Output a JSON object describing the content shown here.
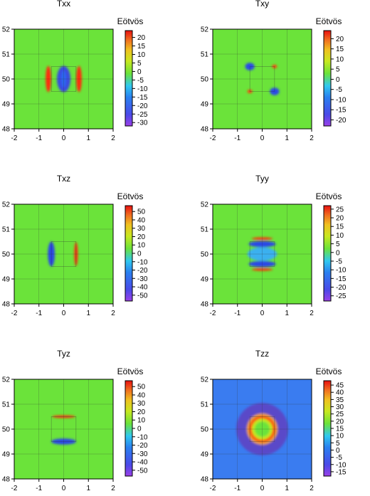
{
  "chart_data": [
    {
      "type": "heatmap",
      "title": "Txx",
      "colorbar_title": "Eötvös",
      "background_color": "#6be33a",
      "xticks": [
        -2,
        -1,
        0,
        1,
        2
      ],
      "yticks": [
        48,
        49,
        50,
        51,
        52
      ],
      "xlim": [
        -2,
        2
      ],
      "ylim": [
        48,
        52
      ],
      "colorbar_ticks": [
        20,
        15,
        10,
        5,
        0,
        -5,
        -10,
        -15,
        -20,
        -25,
        -30
      ],
      "colorbar_range": [
        -32,
        24
      ],
      "features": [
        {
          "x": 0,
          "y": 50,
          "w": 0.55,
          "h": 1.05,
          "color": "#3a49e0"
        },
        {
          "x": 0,
          "y": 50,
          "w": 0.2,
          "h": 0.7,
          "color": "#2c68f0"
        },
        {
          "x": -0.62,
          "y": 50,
          "w": 0.22,
          "h": 1.05,
          "color": "#ff2a0a"
        },
        {
          "x": 0.62,
          "y": 50,
          "w": 0.22,
          "h": 1.05,
          "color": "#ff2a0a"
        }
      ]
    },
    {
      "type": "heatmap",
      "title": "Txy",
      "colorbar_title": "Eötvös",
      "background_color": "#6be33a",
      "xticks": [
        -2,
        -1,
        0,
        1,
        2
      ],
      "yticks": [
        48,
        49,
        50,
        51,
        52
      ],
      "xlim": [
        -2,
        2
      ],
      "ylim": [
        48,
        52
      ],
      "colorbar_ticks": [
        20,
        15,
        10,
        5,
        0,
        -5,
        -10,
        -15,
        -20
      ],
      "colorbar_range": [
        -23,
        24
      ],
      "features": [
        {
          "x": -0.5,
          "y": 50.5,
          "w": 0.38,
          "h": 0.3,
          "color": "#2a4ae8"
        },
        {
          "x": 0.5,
          "y": 49.5,
          "w": 0.38,
          "h": 0.3,
          "color": "#2a4ae8"
        },
        {
          "x": 0.5,
          "y": 50.5,
          "w": 0.2,
          "h": 0.14,
          "color": "#ff3a0a"
        },
        {
          "x": -0.5,
          "y": 49.5,
          "w": 0.2,
          "h": 0.14,
          "color": "#ff3a0a"
        }
      ]
    },
    {
      "type": "heatmap",
      "title": "Txz",
      "colorbar_title": "Eötvös",
      "background_color": "#6be33a",
      "xticks": [
        -2,
        -1,
        0,
        1,
        2
      ],
      "yticks": [
        48,
        49,
        50,
        51,
        52
      ],
      "xlim": [
        -2,
        2
      ],
      "ylim": [
        48,
        52
      ],
      "colorbar_ticks": [
        50,
        40,
        30,
        20,
        10,
        0,
        -10,
        -20,
        -30,
        -40,
        -50
      ],
      "colorbar_range": [
        -57,
        57
      ],
      "features": [
        {
          "x": -0.5,
          "y": 50,
          "w": 0.28,
          "h": 1.0,
          "color": "#2a46e6"
        },
        {
          "x": 0.5,
          "y": 50,
          "w": 0.14,
          "h": 0.95,
          "color": "#ff2a0a"
        }
      ]
    },
    {
      "type": "heatmap",
      "title": "Tyy",
      "colorbar_title": "Eötvös",
      "background_color": "#6be33a",
      "xticks": [
        -2,
        -1,
        0,
        1,
        2
      ],
      "yticks": [
        48,
        49,
        50,
        51,
        52
      ],
      "xlim": [
        -2,
        2
      ],
      "ylim": [
        48,
        52
      ],
      "colorbar_ticks": [
        25,
        20,
        15,
        10,
        5,
        0,
        -5,
        -10,
        -15,
        -20,
        -25
      ],
      "colorbar_range": [
        -28,
        27
      ],
      "features": [
        {
          "x": 0,
          "y": 50,
          "w": 1.2,
          "h": 0.55,
          "color": "#3ab0f0"
        },
        {
          "x": 0,
          "y": 50.4,
          "w": 1.1,
          "h": 0.24,
          "color": "#2a46e6"
        },
        {
          "x": 0,
          "y": 49.6,
          "w": 1.1,
          "h": 0.24,
          "color": "#2a46e6"
        },
        {
          "x": 0,
          "y": 50.62,
          "w": 0.85,
          "h": 0.1,
          "color": "#ff2a0a"
        },
        {
          "x": 0,
          "y": 49.38,
          "w": 0.85,
          "h": 0.1,
          "color": "#ff2a0a"
        }
      ]
    },
    {
      "type": "heatmap",
      "title": "Tyz",
      "colorbar_title": "Eötvös",
      "background_color": "#6be33a",
      "xticks": [
        -2,
        -1,
        0,
        1,
        2
      ],
      "yticks": [
        48,
        49,
        50,
        51,
        52
      ],
      "xlim": [
        -2,
        2
      ],
      "ylim": [
        48,
        52
      ],
      "colorbar_ticks": [
        50,
        40,
        30,
        20,
        10,
        0,
        -10,
        -20,
        -30,
        -40,
        -50
      ],
      "colorbar_range": [
        -57,
        57
      ],
      "features": [
        {
          "x": 0,
          "y": 50.5,
          "w": 0.95,
          "h": 0.1,
          "color": "#ff2a0a"
        },
        {
          "x": 0,
          "y": 49.5,
          "w": 1.0,
          "h": 0.24,
          "color": "#2a46e6"
        }
      ]
    },
    {
      "type": "heatmap",
      "title": "Tzz",
      "colorbar_title": "Eötvös",
      "background_color": "#3a7cf0",
      "xticks": [
        -2,
        -1,
        0,
        1,
        2
      ],
      "yticks": [
        48,
        49,
        50,
        51,
        52
      ],
      "xlim": [
        -2,
        2
      ],
      "ylim": [
        48,
        52
      ],
      "colorbar_ticks": [
        45,
        40,
        35,
        30,
        25,
        20,
        15,
        10,
        5,
        0,
        -5,
        -10,
        -15
      ],
      "colorbar_range": [
        -18,
        48
      ],
      "features": [
        {
          "x": 0,
          "y": 50,
          "w": 2.1,
          "h": 2.1,
          "color": "#5a48c8"
        },
        {
          "x": 0,
          "y": 50,
          "w": 1.25,
          "h": 1.25,
          "color": "#e8a020"
        },
        {
          "x": 0,
          "y": 50,
          "w": 1.05,
          "h": 1.05,
          "color": "#ff3a0a"
        },
        {
          "x": 0,
          "y": 50,
          "w": 0.85,
          "h": 0.85,
          "color": "#c4e820"
        },
        {
          "x": 0,
          "y": 50,
          "w": 0.62,
          "h": 0.62,
          "color": "#6be33a"
        }
      ]
    }
  ]
}
